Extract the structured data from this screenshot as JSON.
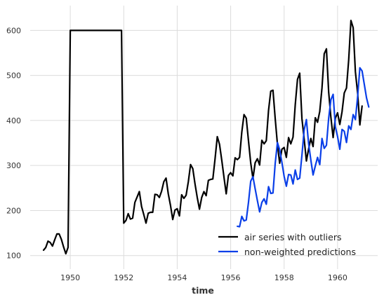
{
  "chart_data": {
    "type": "line",
    "xlabel": "time",
    "ylabel": "",
    "xlim": [
      1948.5,
      1961.5
    ],
    "ylim": [
      70,
      655
    ],
    "grid": true,
    "legend_position": "bottom-right",
    "x_ticks": [
      1950,
      1952,
      1954,
      1956,
      1958,
      1960
    ],
    "y_ticks": [
      100,
      200,
      300,
      400,
      500,
      600
    ],
    "series": [
      {
        "name": "air series with outliers",
        "color": "#000000",
        "start": 1949.0,
        "step": 0.08333,
        "values": [
          112,
          118,
          132,
          129,
          121,
          135,
          148,
          148,
          136,
          119,
          104,
          118,
          600,
          600,
          600,
          600,
          600,
          600,
          600,
          600,
          600,
          600,
          600,
          600,
          600,
          600,
          600,
          600,
          600,
          600,
          600,
          600,
          600,
          600,
          600,
          600,
          172,
          178,
          193,
          181,
          183,
          218,
          230,
          242,
          209,
          191,
          172,
          194,
          196,
          196,
          236,
          235,
          229,
          243,
          264,
          272,
          237,
          211,
          180,
          201,
          204,
          188,
          235,
          227,
          234,
          264,
          302,
          293,
          259,
          229,
          203,
          229,
          242,
          233,
          267,
          269,
          270,
          315,
          364,
          347,
          312,
          274,
          237,
          278,
          284,
          277,
          317,
          313,
          318,
          374,
          413,
          405,
          355,
          306,
          271,
          306,
          315,
          301,
          356,
          348,
          355,
          422,
          465,
          467,
          404,
          347,
          305,
          336,
          340,
          318,
          362,
          348,
          363,
          435,
          491,
          505,
          404,
          359,
          310,
          337,
          360,
          342,
          406,
          396,
          420,
          472,
          548,
          559,
          463,
          407,
          362,
          405,
          417,
          391,
          419,
          461,
          472,
          535,
          622,
          606,
          508,
          461,
          390,
          432
        ]
      },
      {
        "name": "non-weighted predictions",
        "color": "#0a3fe8",
        "start": 1956.25,
        "step": 0.08333,
        "values": [
          165,
          164,
          187,
          177,
          179,
          218,
          265,
          275,
          248,
          222,
          197,
          218,
          226,
          214,
          253,
          238,
          239,
          305,
          351,
          335,
          307,
          276,
          254,
          280,
          279,
          259,
          290,
          269,
          272,
          323,
          379,
          402,
          348,
          312,
          279,
          299,
          318,
          302,
          360,
          338,
          345,
          405,
          446,
          458,
          386,
          364,
          336,
          380,
          376,
          351,
          388,
          380,
          413,
          402,
          453,
          517,
          510,
          480,
          450,
          430
        ]
      }
    ]
  }
}
